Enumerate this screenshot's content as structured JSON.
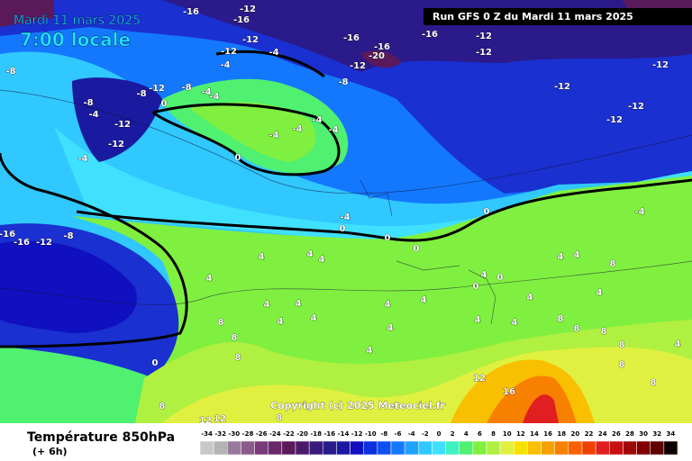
{
  "header": {
    "date": "Mardi 11 mars 2025",
    "time": "7:00 locale",
    "run": "Run GFS 0 Z du Mardi 11 mars 2025"
  },
  "copyright": "Copyright (c) 2025 Meteociel.fr",
  "footer": {
    "title": "Température 850hPa",
    "step": "(+ 6h)"
  },
  "scale": {
    "labels": [
      "-34",
      "-32",
      "-30",
      "-28",
      "-26",
      "-24",
      "-22",
      "-20",
      "-18",
      "-16",
      "-14",
      "-12",
      "-10",
      "-8",
      "-6",
      "-4",
      "-2",
      "0",
      "2",
      "4",
      "6",
      "8",
      "10",
      "12",
      "14",
      "16",
      "18",
      "20",
      "22",
      "24",
      "26",
      "28",
      "30",
      "32",
      "34"
    ],
    "colors": [
      "#c8c8c8",
      "#b4b4b4",
      "#9a7a9a",
      "#8a5a8a",
      "#7a3a7a",
      "#6a2a6a",
      "#5a1a5a",
      "#4a1a6a",
      "#3a1a7a",
      "#2a1a8a",
      "#1a1aa0",
      "#1010c0",
      "#0a30e0",
      "#1050f0",
      "#1478ff",
      "#20a0ff",
      "#30c8ff",
      "#40e0ff",
      "#40f0c0",
      "#50f070",
      "#80f040",
      "#b0f040",
      "#e0f040",
      "#f8e000",
      "#f8c000",
      "#f8a000",
      "#f88000",
      "#f86000",
      "#f04000",
      "#e02020",
      "#c81010",
      "#a00808",
      "#800000",
      "#600000",
      "#100000"
    ]
  },
  "contour_labels": [
    "-16",
    "-16",
    "-12",
    "-12",
    "-16",
    "-16",
    "-20",
    "-16",
    "-12",
    "-12",
    "-12",
    "-8",
    "-12",
    "-12",
    "-12",
    "-12",
    "-8",
    "-12",
    "-4",
    "-4",
    "-12",
    "-8",
    "-8",
    "-4",
    "-4",
    "-8",
    "-4",
    "-12",
    "-12",
    "-4",
    "0",
    "-4",
    "-4",
    "-4",
    "-4",
    "0",
    "-16",
    "-16",
    "-12",
    "-8",
    "-4",
    "0",
    "0",
    "0",
    "0",
    "-4",
    "4",
    "4",
    "4",
    "4",
    "4",
    "4",
    "4",
    "4",
    "4",
    "4",
    "4",
    "0",
    "0",
    "4",
    "4",
    "4",
    "8",
    "4",
    "4",
    "4",
    "4",
    "8",
    "8",
    "8",
    "8",
    "8",
    "8",
    "8",
    "4",
    "0",
    "8",
    "12",
    "16",
    "8",
    "8",
    "4",
    "8",
    "12",
    "12"
  ]
}
